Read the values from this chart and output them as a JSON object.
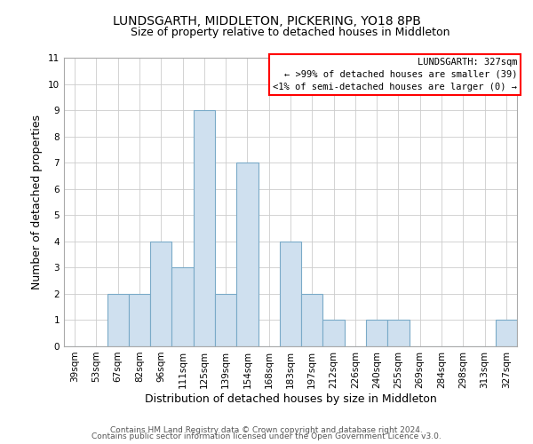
{
  "title": "LUNDSGARTH, MIDDLETON, PICKERING, YO18 8PB",
  "subtitle": "Size of property relative to detached houses in Middleton",
  "xlabel": "Distribution of detached houses by size in Middleton",
  "ylabel": "Number of detached properties",
  "bar_color": "#cfe0ef",
  "bar_edge_color": "#7aaac8",
  "categories": [
    "39sqm",
    "53sqm",
    "67sqm",
    "82sqm",
    "96sqm",
    "111sqm",
    "125sqm",
    "139sqm",
    "154sqm",
    "168sqm",
    "183sqm",
    "197sqm",
    "212sqm",
    "226sqm",
    "240sqm",
    "255sqm",
    "269sqm",
    "284sqm",
    "298sqm",
    "313sqm",
    "327sqm"
  ],
  "values": [
    0,
    0,
    2,
    2,
    4,
    3,
    9,
    2,
    7,
    0,
    4,
    2,
    1,
    0,
    1,
    1,
    0,
    0,
    0,
    0,
    1
  ],
  "ylim": [
    0,
    11
  ],
  "yticks": [
    0,
    1,
    2,
    3,
    4,
    5,
    6,
    7,
    8,
    9,
    10,
    11
  ],
  "annotation_box_text": "LUNDSGARTH: 327sqm\n← >99% of detached houses are smaller (39)\n<1% of semi-detached houses are larger (0) →",
  "footer_line1": "Contains HM Land Registry data © Crown copyright and database right 2024.",
  "footer_line2": "Contains public sector information licensed under the Open Government Licence v3.0.",
  "grid_color": "#cccccc",
  "background_color": "#ffffff",
  "title_fontsize": 10,
  "subtitle_fontsize": 9,
  "axis_label_fontsize": 9,
  "tick_fontsize": 7.5,
  "footer_fontsize": 6.5
}
